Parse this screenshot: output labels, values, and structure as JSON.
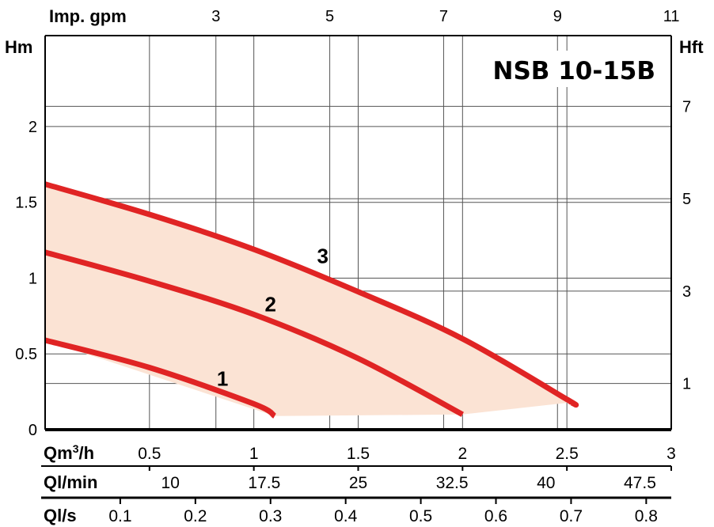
{
  "chart_data": {
    "type": "line",
    "title": "NSB 10-15B",
    "x": [
      0,
      0.5,
      1.0,
      1.5,
      2.0,
      2.5
    ],
    "series": [
      {
        "name": "1",
        "x": [
          0,
          0.5,
          1.0,
          1.1
        ],
        "values": [
          0.59,
          0.41,
          0.17,
          0.09
        ]
      },
      {
        "name": "2",
        "x": [
          0,
          0.5,
          1.0,
          1.5,
          2.0
        ],
        "values": [
          1.17,
          0.98,
          0.76,
          0.47,
          0.1
        ]
      },
      {
        "name": "3",
        "x": [
          0,
          0.5,
          1.0,
          1.5,
          2.0,
          2.5,
          2.52
        ],
        "values": [
          1.62,
          1.42,
          1.19,
          0.91,
          0.6,
          0.2,
          0.18
        ]
      }
    ],
    "operating_area_color": "#fbe3d4",
    "curve_color": "#e02424",
    "title_color": "#e02424",
    "xlim": [
      0,
      3
    ],
    "ylim": [
      0,
      2.6
    ],
    "axes": {
      "left": {
        "label": "Hm",
        "ticks": [
          "0",
          "0.5",
          "1",
          "1.5",
          "2"
        ],
        "values": [
          0,
          0.5,
          1,
          1.5,
          2
        ]
      },
      "right": {
        "label": "Hft",
        "ticks": [
          "1",
          "3",
          "5",
          "7"
        ],
        "values": [
          1,
          3,
          5,
          7
        ]
      },
      "top": {
        "label": "Imp. gpm",
        "ticks": [
          "3",
          "5",
          "7",
          "9",
          "11"
        ],
        "values": [
          3,
          5,
          7,
          9,
          11
        ]
      },
      "bottom_rows": [
        {
          "label": "Qm³/h",
          "ticks": [
            "0.5",
            "1",
            "1.5",
            "2",
            "2.5",
            "3"
          ],
          "values": [
            0.5,
            1,
            1.5,
            2,
            2.5,
            3
          ]
        },
        {
          "label": "Ql/min",
          "ticks": [
            "10",
            "17.5",
            "25",
            "32.5",
            "40",
            "47.5"
          ],
          "values": [
            10,
            17.5,
            25,
            32.5,
            40,
            47.5
          ]
        },
        {
          "label": "Ql/s",
          "ticks": [
            "0.1",
            "0.2",
            "0.3",
            "0.4",
            "0.5",
            "0.6",
            "0.7",
            "0.8"
          ],
          "values": [
            0.1,
            0.2,
            0.3,
            0.4,
            0.5,
            0.6,
            0.7,
            0.8
          ]
        }
      ]
    },
    "grid": true
  }
}
